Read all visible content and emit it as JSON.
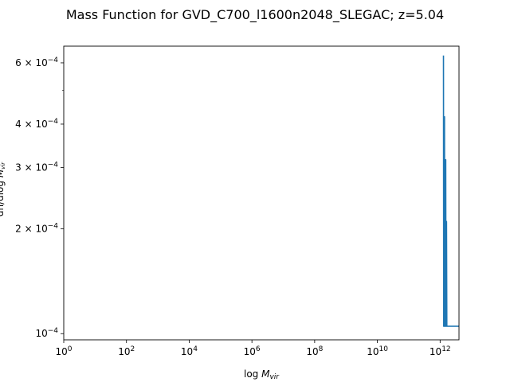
{
  "chart_data": {
    "type": "line",
    "title": "Mass Function for GVD_C700_l1600n2048_SLEGAC; z=5.04",
    "xlabel": "log M_vir",
    "ylabel": "dn/dlog M_vir",
    "xscale": "log",
    "yscale": "log",
    "xlim": [
      1,
      4000000000000.0
    ],
    "ylim": [
      9.6e-05,
      0.00067
    ],
    "x_ticks": [
      {
        "value": 1,
        "base": "10",
        "exp": "0"
      },
      {
        "value": 100,
        "base": "10",
        "exp": "2"
      },
      {
        "value": 10000,
        "base": "10",
        "exp": "4"
      },
      {
        "value": 1000000,
        "base": "10",
        "exp": "6"
      },
      {
        "value": 100000000,
        "base": "10",
        "exp": "8"
      },
      {
        "value": 10000000000,
        "base": "10",
        "exp": "10"
      },
      {
        "value": 1000000000000,
        "base": "10",
        "exp": "12"
      }
    ],
    "y_ticks": [
      {
        "value": 0.0001,
        "mant": "10",
        "exp": "−4"
      },
      {
        "value": 0.0002,
        "mant": "2 × 10",
        "exp": "−4"
      },
      {
        "value": 0.0003,
        "mant": "3 × 10",
        "exp": "−4"
      },
      {
        "value": 0.0004,
        "mant": "4 × 10",
        "exp": "−4"
      },
      {
        "value": 0.0006,
        "mant": "6 × 10",
        "exp": "−4"
      }
    ],
    "y_minor_ticks": [
      0.0005
    ],
    "grid": false,
    "series": [
      {
        "color": "#1f77b4",
        "x": [
          1280000000000.0,
          1300000000000.0,
          1320000000000.0,
          1350000000000.0,
          1380000000000.0,
          1400000000000.0,
          1440000000000.0,
          1470000000000.0,
          1510000000000.0,
          1540000000000.0,
          1600000000000.0,
          1640000000000.0,
          1700000000000.0,
          4000000000000.0
        ],
        "y": [
          0.00063,
          0.000105,
          0.00042,
          0.000105,
          0.00042,
          0.000105,
          0.000316,
          0.000105,
          0.000316,
          0.000105,
          0.00021,
          0.000105,
          0.000105,
          0.000105
        ]
      }
    ]
  }
}
